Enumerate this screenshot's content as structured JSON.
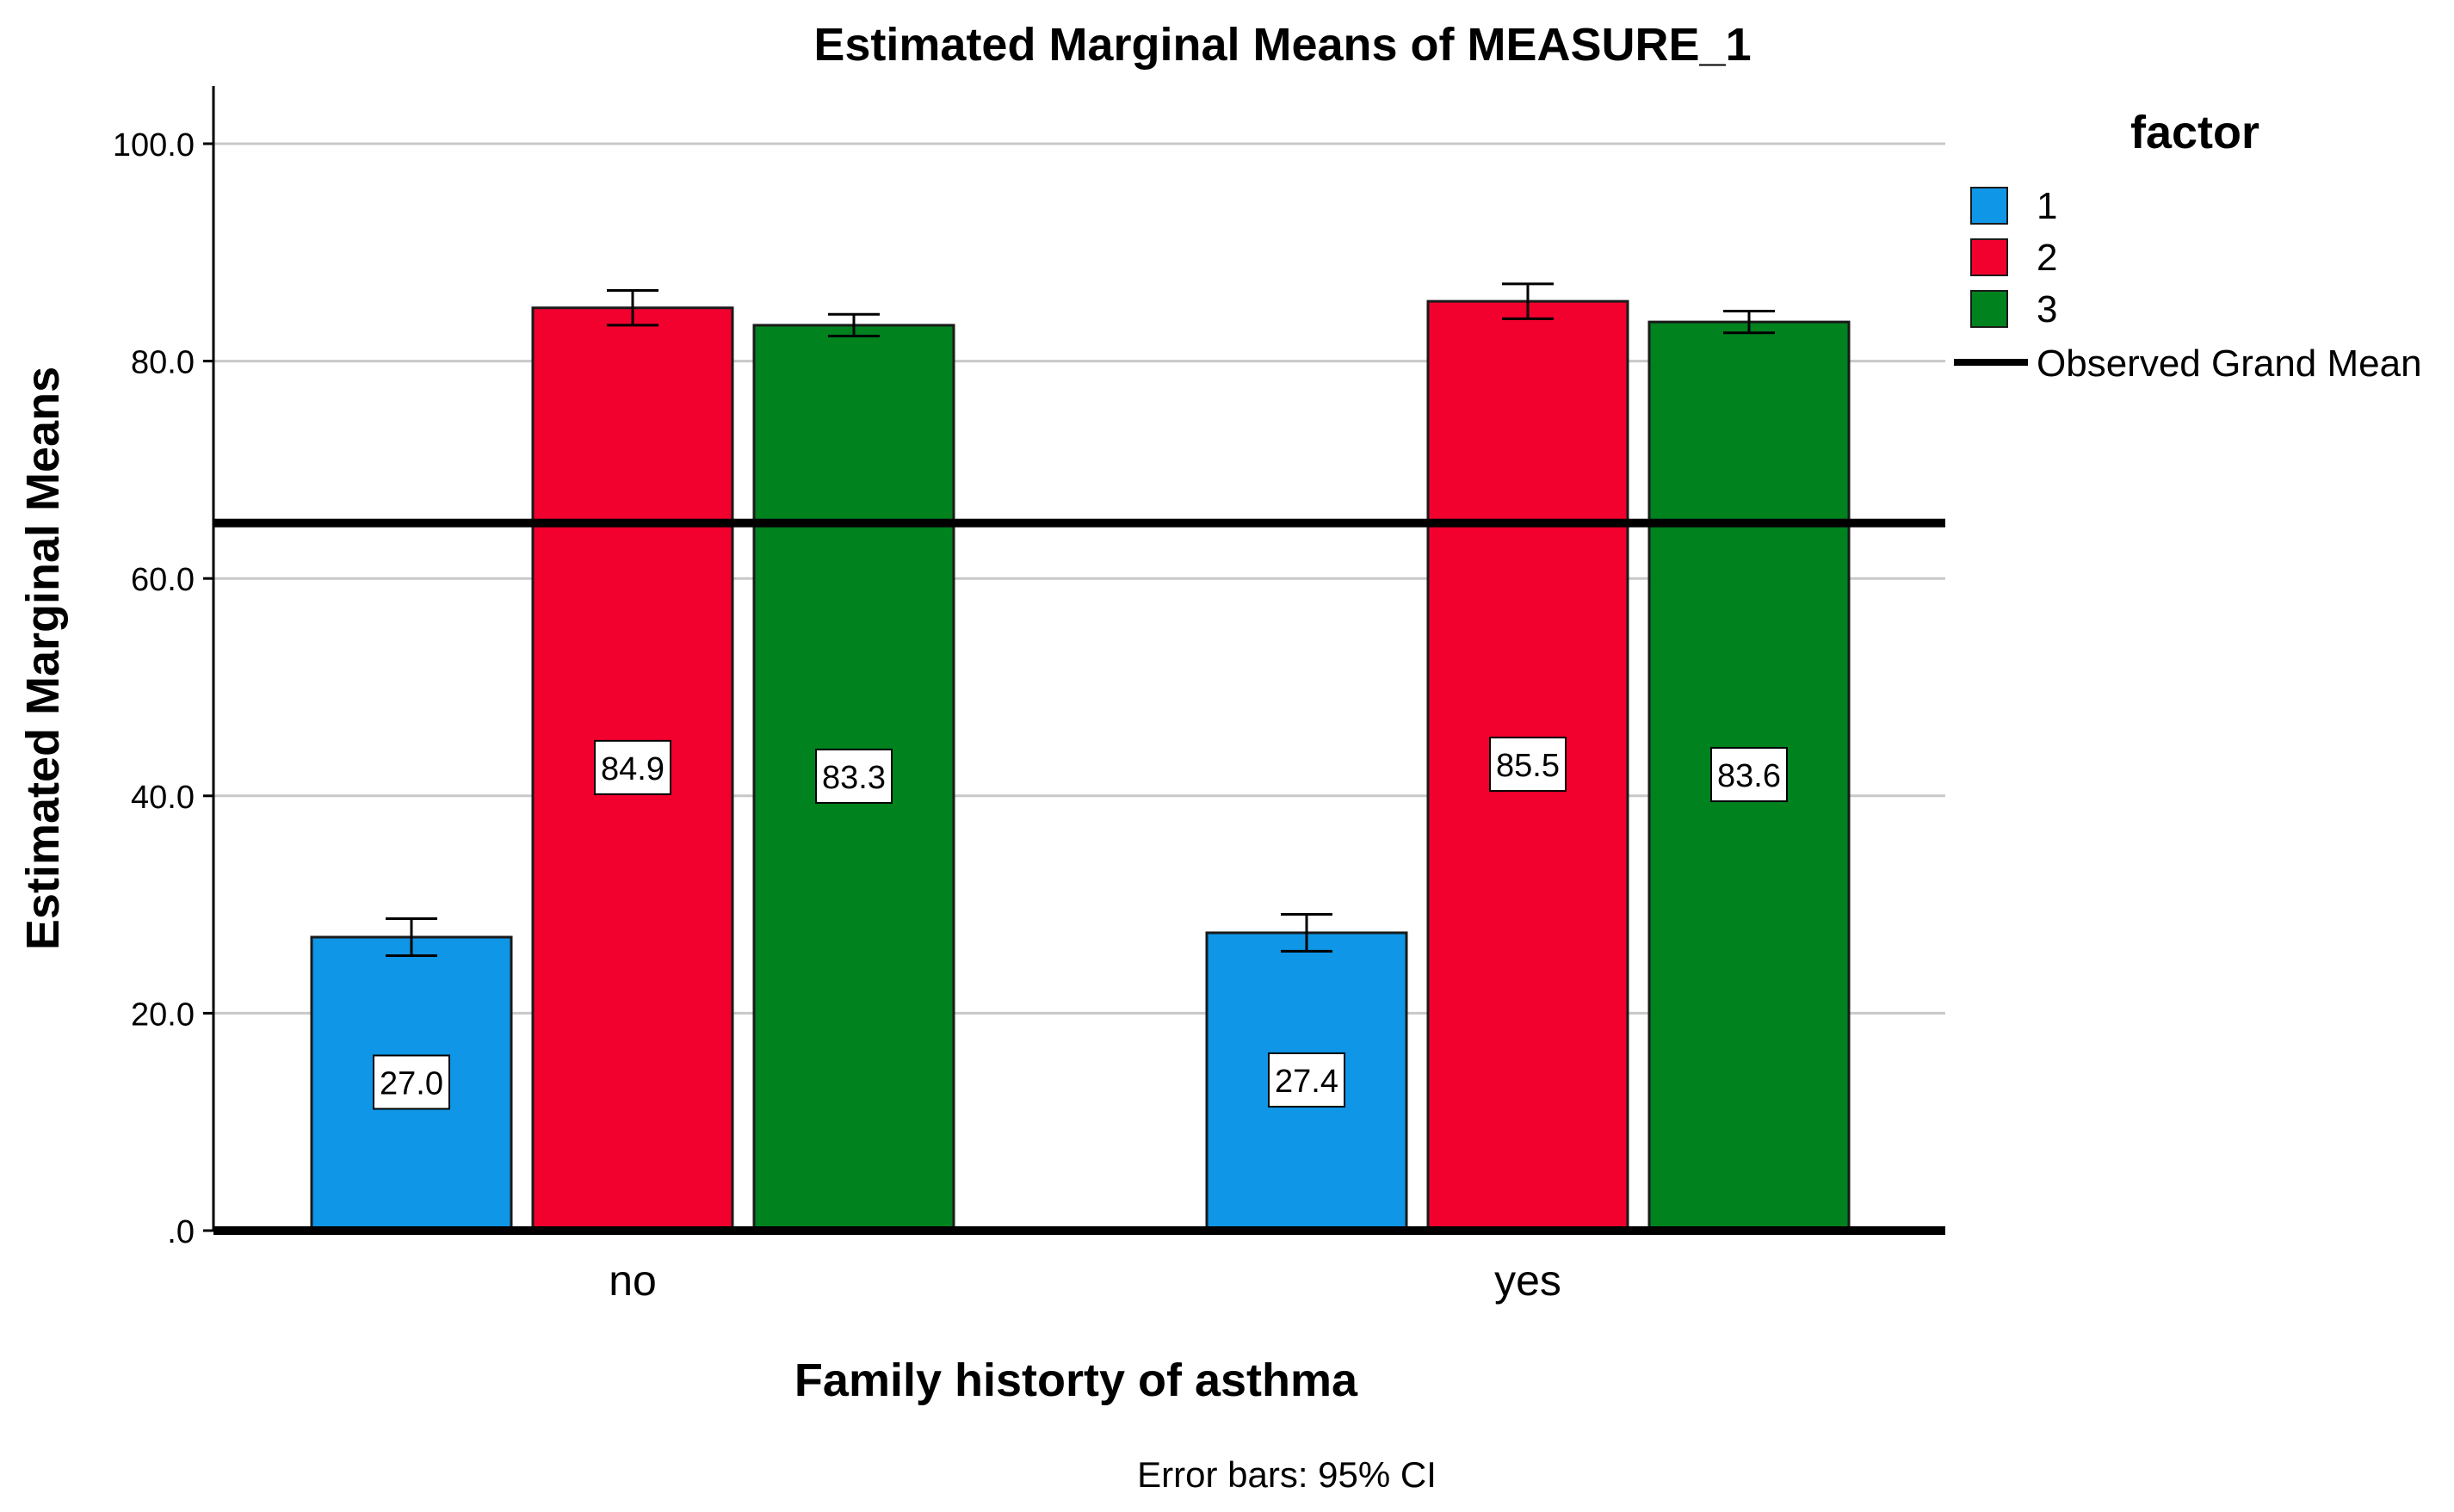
{
  "chart_data": {
    "type": "bar",
    "title": "Estimated Marginal Means of MEASURE_1",
    "xlabel": "Family historty of asthma",
    "ylabel": "Estimated Marginal Means",
    "footnote": "Error bars: 95% CI",
    "categories": [
      "no",
      "yes"
    ],
    "ylim": [
      0,
      105
    ],
    "yticks": [
      0,
      20,
      40,
      60,
      80,
      100
    ],
    "ytick_labels": [
      ".0",
      "20.0",
      "40.0",
      "60.0",
      "80.0",
      "100.0"
    ],
    "grid": true,
    "legend_title": "factor",
    "legend_position": "right",
    "grand_mean_label": "Observed Grand Mean",
    "grand_mean": 65.1,
    "series": [
      {
        "name": "1",
        "color": "#0F96E6",
        "values": [
          27.0,
          27.4
        ],
        "labels": [
          "27.0",
          "27.4"
        ],
        "ci_low": [
          25.3,
          25.7
        ],
        "ci_high": [
          28.7,
          29.1
        ]
      },
      {
        "name": "2",
        "color": "#F2002E",
        "values": [
          84.9,
          85.5
        ],
        "labels": [
          "84.9",
          "85.5"
        ],
        "ci_low": [
          83.3,
          83.9
        ],
        "ci_high": [
          86.5,
          87.1
        ]
      },
      {
        "name": "3",
        "color": "#00821E",
        "values": [
          83.3,
          83.6
        ],
        "labels": [
          "83.3",
          "83.6"
        ],
        "ci_low": [
          82.3,
          82.6
        ],
        "ci_high": [
          84.3,
          84.6
        ]
      }
    ]
  }
}
